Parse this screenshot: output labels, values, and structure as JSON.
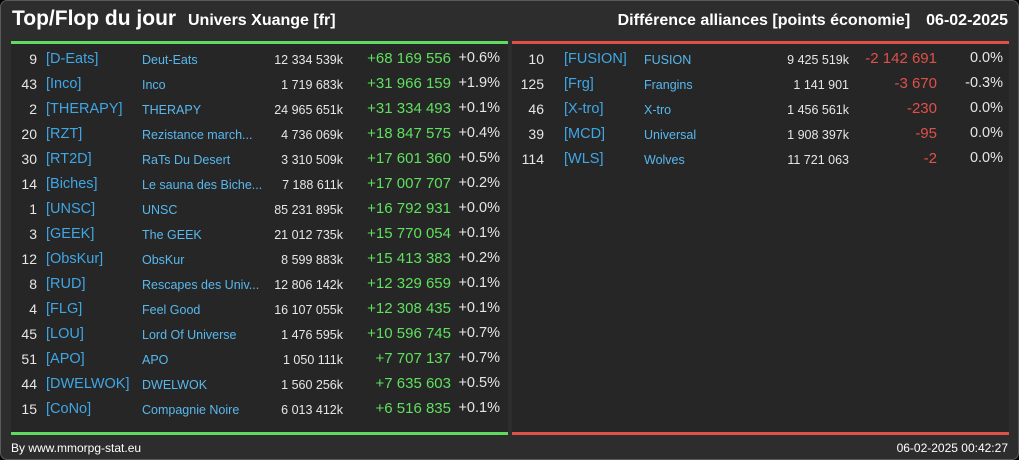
{
  "header": {
    "title": "Top/Flop du jour",
    "server": "Univers Xuange [fr]",
    "metric": "Différence alliances [points économie]",
    "date": "06-02-2025"
  },
  "colors": {
    "background": "#2d2d2d",
    "panel": "#262626",
    "positive": "#5fe05f",
    "negative": "#e0504a",
    "tag": "#3fa7e6",
    "name": "#58b8ee"
  },
  "top": [
    {
      "rank": "9",
      "tag": "[D-Eats]",
      "name": "Deut-Eats",
      "total": "12 334 539k",
      "diff": "+68 169 556",
      "pct": "+0.6%"
    },
    {
      "rank": "43",
      "tag": "[Inco]",
      "name": "Inco",
      "total": "1 719 683k",
      "diff": "+31 966 159",
      "pct": "+1.9%"
    },
    {
      "rank": "2",
      "tag": "[THERAPY]",
      "name": "THERAPY",
      "total": "24 965 651k",
      "diff": "+31 334 493",
      "pct": "+0.1%"
    },
    {
      "rank": "20",
      "tag": "[RZT]",
      "name": "Rezistance march...",
      "total": "4 736 069k",
      "diff": "+18 847 575",
      "pct": "+0.4%"
    },
    {
      "rank": "30",
      "tag": "[RT2D]",
      "name": "RaTs Du Desert",
      "total": "3 310 509k",
      "diff": "+17 601 360",
      "pct": "+0.5%"
    },
    {
      "rank": "14",
      "tag": "[Biches]",
      "name": "Le sauna des Biche...",
      "total": "7 188 611k",
      "diff": "+17 007 707",
      "pct": "+0.2%"
    },
    {
      "rank": "1",
      "tag": "[UNSC]",
      "name": "UNSC",
      "total": "85 231 895k",
      "diff": "+16 792 931",
      "pct": "+0.0%"
    },
    {
      "rank": "3",
      "tag": "[GEEK]",
      "name": "The GEEK",
      "total": "21 012 735k",
      "diff": "+15 770 054",
      "pct": "+0.1%"
    },
    {
      "rank": "12",
      "tag": "[ObsKur]",
      "name": "ObsKur",
      "total": "8 599 883k",
      "diff": "+15 413 383",
      "pct": "+0.2%"
    },
    {
      "rank": "8",
      "tag": "[RUD]",
      "name": "Rescapes des Univ...",
      "total": "12 806 142k",
      "diff": "+12 329 659",
      "pct": "+0.1%"
    },
    {
      "rank": "4",
      "tag": "[FLG]",
      "name": "Feel Good",
      "total": "16 107 055k",
      "diff": "+12 308 435",
      "pct": "+0.1%"
    },
    {
      "rank": "45",
      "tag": "[LOU]",
      "name": "Lord Of Universe",
      "total": "1 476 595k",
      "diff": "+10 596 745",
      "pct": "+0.7%"
    },
    {
      "rank": "51",
      "tag": "[APO]",
      "name": "APO",
      "total": "1 050 111k",
      "diff": "+7 707 137",
      "pct": "+0.7%"
    },
    {
      "rank": "44",
      "tag": "[DWELWOK]",
      "name": "DWELWOK",
      "total": "1 560 256k",
      "diff": "+7 635 603",
      "pct": "+0.5%"
    },
    {
      "rank": "15",
      "tag": "[CoNo]",
      "name": "Compagnie Noire",
      "total": "6 013 412k",
      "diff": "+6 516 835",
      "pct": "+0.1%"
    }
  ],
  "flop": [
    {
      "rank": "10",
      "tag": "[FUSION]",
      "name": "FUSION",
      "total": "9 425 519k",
      "diff": "-2 142 691",
      "pct": "0.0%"
    },
    {
      "rank": "125",
      "tag": "[Frg]",
      "name": "Frangins",
      "total": "1 141 901",
      "diff": "-3 670",
      "pct": "-0.3%"
    },
    {
      "rank": "46",
      "tag": "[X-tro]",
      "name": "X-tro",
      "total": "1 456 561k",
      "diff": "-230",
      "pct": "0.0%"
    },
    {
      "rank": "39",
      "tag": "[MCD]",
      "name": "Universal",
      "total": "1 908 397k",
      "diff": "-95",
      "pct": "0.0%"
    },
    {
      "rank": "114",
      "tag": "[WLS]",
      "name": "Wolves",
      "total": "11 721 063",
      "diff": "-2",
      "pct": "0.0%"
    }
  ],
  "footer": {
    "source": "By www.mmorpg-stat.eu",
    "timestamp": "06-02-2025 00:42:27"
  }
}
